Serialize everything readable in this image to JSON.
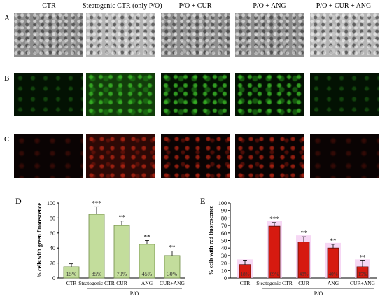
{
  "columns": [
    "CTR",
    "Steatogenic CTR (only P/O)",
    "P/O + CUR",
    "P/O + ANG",
    "P/O + CUR + ANG"
  ],
  "row_labels": [
    "A",
    "B",
    "C"
  ],
  "chart_data": [
    {
      "panel": "D",
      "type": "bar",
      "ylabel": "% cells with green fluorescence",
      "ylim": [
        0,
        100
      ],
      "yticks": [
        "0",
        "20",
        "40",
        "60",
        "80",
        "100"
      ],
      "categories": [
        "CTR",
        "Steatogenic CTR",
        "CUR",
        "ANG",
        "CUR+ANG"
      ],
      "values": [
        15,
        85,
        70,
        45,
        30
      ],
      "errors": [
        4,
        10,
        6,
        5,
        6
      ],
      "bar_labels": [
        "15%",
        "85%",
        "70%",
        "45%",
        "30%"
      ],
      "significance": [
        "",
        "***",
        "**",
        "**",
        "**"
      ],
      "group_label": "P/O",
      "bar_color": "#c3dd9c",
      "bar_stroke": "#6f8c45"
    },
    {
      "panel": "E",
      "type": "bar",
      "ylabel": "% cells with red fluorescence",
      "ylim": [
        0,
        100
      ],
      "yticks": [
        "0",
        "10",
        "20",
        "30",
        "40",
        "50",
        "60",
        "70",
        "80",
        "90",
        "100"
      ],
      "categories": [
        "CTR",
        "Steatogenic CTR",
        "CUR",
        "ANG",
        "CUR+ANG"
      ],
      "values": [
        18,
        69,
        48,
        40,
        15
      ],
      "errors": [
        5,
        5,
        7,
        5,
        8
      ],
      "bar_labels": [
        "18%",
        "69%",
        "48%",
        "40%",
        "15%"
      ],
      "significance": [
        "",
        "***",
        "**",
        "**",
        "**"
      ],
      "group_label": "P/O",
      "bar_color": "#d61a10",
      "bar_stroke": "#5a0f08",
      "halo_color": "#f2c6ef"
    }
  ]
}
